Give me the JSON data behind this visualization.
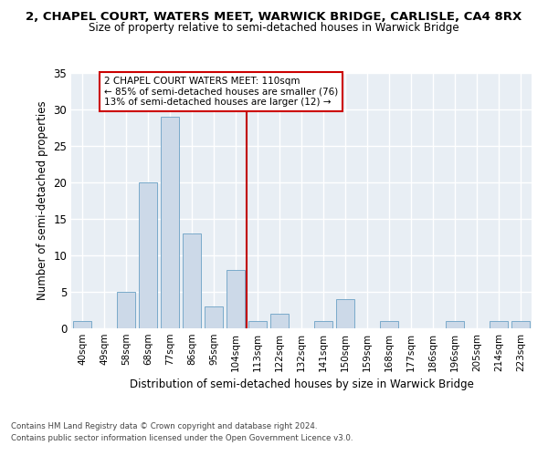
{
  "title_line1": "2, CHAPEL COURT, WATERS MEET, WARWICK BRIDGE, CARLISLE, CA4 8RX",
  "title_line2": "Size of property relative to semi-detached houses in Warwick Bridge",
  "xlabel": "Distribution of semi-detached houses by size in Warwick Bridge",
  "ylabel": "Number of semi-detached properties",
  "categories": [
    "40sqm",
    "49sqm",
    "58sqm",
    "68sqm",
    "77sqm",
    "86sqm",
    "95sqm",
    "104sqm",
    "113sqm",
    "122sqm",
    "132sqm",
    "141sqm",
    "150sqm",
    "159sqm",
    "168sqm",
    "177sqm",
    "186sqm",
    "196sqm",
    "205sqm",
    "214sqm",
    "223sqm"
  ],
  "values": [
    1,
    0,
    5,
    20,
    29,
    13,
    3,
    8,
    1,
    2,
    0,
    1,
    4,
    0,
    1,
    0,
    0,
    1,
    0,
    1,
    1
  ],
  "bar_color": "#ccd9e8",
  "bar_edge_color": "#7aaaca",
  "vline_x": 7.5,
  "vline_color": "#c00000",
  "annotation_text": "2 CHAPEL COURT WATERS MEET: 110sqm\n← 85% of semi-detached houses are smaller (76)\n13% of semi-detached houses are larger (12) →",
  "annotation_box_color": "#cc0000",
  "ylim": [
    0,
    35
  ],
  "yticks": [
    0,
    5,
    10,
    15,
    20,
    25,
    30,
    35
  ],
  "background_color": "#e8eef4",
  "grid_color": "#ffffff",
  "footer_line1": "Contains HM Land Registry data © Crown copyright and database right 2024.",
  "footer_line2": "Contains public sector information licensed under the Open Government Licence v3.0."
}
